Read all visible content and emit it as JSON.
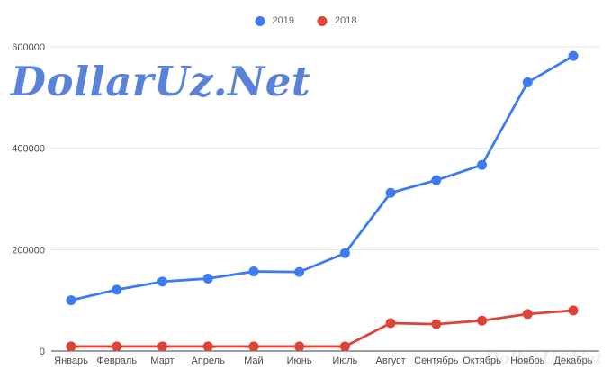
{
  "legend": {
    "items": [
      {
        "label": "2019",
        "color": "#3E7BF0"
      },
      {
        "label": "2018",
        "color": "#DB4437"
      }
    ]
  },
  "watermark": {
    "text": "DollarUz.Net",
    "color": "#5A82D8"
  },
  "watermark_faint": {
    "text": "DollarUz.Net"
  },
  "axis_colors": {
    "baseline": "#3c3c3c",
    "gridline": "#e0e0e0",
    "label": "#4c4c4c"
  },
  "chart_data": {
    "type": "line",
    "title": "",
    "xlabel": "",
    "ylabel": "",
    "categories": [
      "Январь",
      "Февраль",
      "Март",
      "Апрель",
      "Май",
      "Июнь",
      "Июль",
      "Август",
      "Сентябрь",
      "Октябрь",
      "Ноябрь",
      "Декабрь"
    ],
    "series": [
      {
        "name": "2019",
        "color": "#3E7BF0",
        "values": [
          100000,
          121000,
          137000,
          143000,
          157000,
          156000,
          193000,
          312000,
          337000,
          367000,
          530000,
          582000
        ]
      },
      {
        "name": "2018",
        "color": "#DB4437",
        "values": [
          9000,
          9000,
          9000,
          9000,
          9000,
          9000,
          9000,
          55000,
          53000,
          60000,
          73000,
          80000
        ]
      }
    ],
    "ylim": [
      0,
      600000
    ],
    "yticks": [
      0,
      200000,
      400000,
      600000
    ],
    "grid": true,
    "legend_position": "top-center",
    "marker": "circle"
  }
}
